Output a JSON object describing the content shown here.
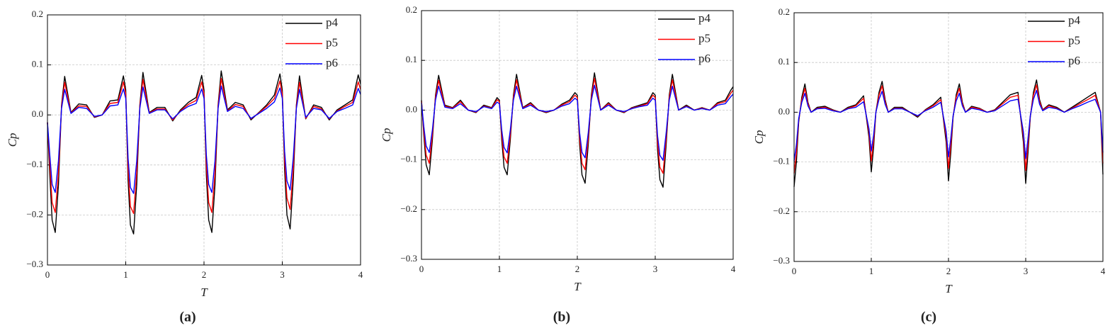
{
  "chart_data": [
    {
      "type": "line",
      "caption": "(a)",
      "x_label": "T",
      "y_label": "Cp",
      "grid": true,
      "legend": "upper right",
      "xlim": [
        0,
        4
      ],
      "ylim": [
        -0.3,
        0.2
      ],
      "xticks": [
        0,
        1,
        2,
        3,
        4
      ],
      "yticks": [
        {
          "value": -0.3,
          "label": "−0.3"
        },
        {
          "value": -0.2,
          "label": "−0.2"
        },
        {
          "value": -0.1,
          "label": "−0.1"
        },
        {
          "value": 0,
          "label": "0.0"
        },
        0.1,
        0.2
      ],
      "x": [
        0,
        0.03,
        0.06,
        0.1,
        0.14,
        0.18,
        0.22,
        0.3,
        0.4,
        0.5,
        0.6,
        0.7,
        0.8,
        0.9,
        0.97,
        1,
        1.03,
        1.06,
        1.1,
        1.14,
        1.18,
        1.22,
        1.3,
        1.4,
        1.5,
        1.6,
        1.7,
        1.8,
        1.9,
        1.97,
        2,
        2.03,
        2.06,
        2.1,
        2.14,
        2.18,
        2.22,
        2.3,
        2.4,
        2.5,
        2.6,
        2.7,
        2.8,
        2.9,
        2.97,
        3,
        3.03,
        3.06,
        3.1,
        3.14,
        3.18,
        3.22,
        3.3,
        3.4,
        3.5,
        3.6,
        3.7,
        3.8,
        3.9,
        3.97,
        4
      ],
      "series": [
        {
          "name": "p4",
          "color": "#000000",
          "values": [
            -0.015,
            -0.12,
            -0.21,
            -0.235,
            -0.14,
            0.02,
            0.077,
            0.005,
            0.022,
            0.02,
            -0.005,
            0.0,
            0.028,
            0.03,
            0.078,
            0.05,
            -0.13,
            -0.22,
            -0.238,
            -0.14,
            0.02,
            0.085,
            0.005,
            0.015,
            0.015,
            -0.012,
            0.01,
            0.025,
            0.035,
            0.079,
            0.05,
            -0.12,
            -0.21,
            -0.235,
            -0.14,
            0.02,
            0.088,
            0.01,
            0.025,
            0.02,
            -0.01,
            0.005,
            0.02,
            0.04,
            0.082,
            0.05,
            -0.11,
            -0.2,
            -0.228,
            -0.13,
            0.02,
            0.078,
            -0.008,
            0.02,
            0.015,
            -0.01,
            0.01,
            0.02,
            0.03,
            0.08,
            0.062
          ]
        },
        {
          "name": "p5",
          "color": "#ff0000",
          "values": [
            -0.015,
            -0.1,
            -0.175,
            -0.195,
            -0.116,
            0.017,
            0.065,
            0.004,
            0.018,
            0.017,
            -0.004,
            0.0,
            0.023,
            0.025,
            0.066,
            0.042,
            -0.108,
            -0.183,
            -0.197,
            -0.116,
            0.017,
            0.071,
            0.004,
            0.012,
            0.012,
            -0.01,
            0.008,
            0.021,
            0.029,
            0.066,
            0.042,
            -0.1,
            -0.175,
            -0.195,
            -0.116,
            0.017,
            0.073,
            0.008,
            0.021,
            0.017,
            -0.008,
            0.004,
            0.017,
            0.033,
            0.068,
            0.042,
            -0.091,
            -0.166,
            -0.189,
            -0.108,
            0.017,
            0.065,
            -0.007,
            0.017,
            0.012,
            -0.008,
            0.008,
            0.017,
            0.025,
            0.066,
            0.051
          ]
        },
        {
          "name": "p6",
          "color": "#0000ff",
          "values": [
            -0.015,
            -0.08,
            -0.139,
            -0.155,
            -0.092,
            0.013,
            0.051,
            0.003,
            0.015,
            0.013,
            -0.003,
            0.0,
            0.018,
            0.02,
            0.052,
            0.033,
            -0.086,
            -0.145,
            -0.157,
            -0.092,
            0.013,
            0.056,
            0.003,
            0.01,
            0.01,
            -0.008,
            0.007,
            0.017,
            0.023,
            0.052,
            0.033,
            -0.08,
            -0.139,
            -0.155,
            -0.092,
            0.013,
            0.058,
            0.007,
            0.017,
            0.013,
            -0.007,
            0.003,
            0.013,
            0.026,
            0.054,
            0.033,
            -0.073,
            -0.132,
            -0.15,
            -0.086,
            0.013,
            0.051,
            -0.005,
            0.013,
            0.01,
            -0.007,
            0.007,
            0.013,
            0.02,
            0.053,
            0.041
          ]
        }
      ]
    },
    {
      "type": "line",
      "caption": "(b)",
      "x_label": "T",
      "y_label": "Cp",
      "grid": true,
      "legend": "upper right",
      "xlim": [
        0,
        4
      ],
      "ylim": [
        -0.3,
        0.2
      ],
      "xticks": [
        0,
        1,
        2,
        3,
        4
      ],
      "yticks": [
        {
          "value": -0.3,
          "label": "−0.3"
        },
        {
          "value": -0.2,
          "label": "−0.2"
        },
        {
          "value": -0.1,
          "label": "−0.1"
        },
        {
          "value": 0,
          "label": "0.0"
        },
        0.1,
        0.2
      ],
      "x": [
        0,
        0.03,
        0.06,
        0.1,
        0.14,
        0.18,
        0.22,
        0.3,
        0.4,
        0.5,
        0.6,
        0.7,
        0.8,
        0.9,
        0.97,
        1,
        1.03,
        1.06,
        1.1,
        1.14,
        1.18,
        1.22,
        1.3,
        1.4,
        1.5,
        1.6,
        1.7,
        1.8,
        1.9,
        1.97,
        2,
        2.03,
        2.06,
        2.1,
        2.14,
        2.18,
        2.22,
        2.3,
        2.4,
        2.5,
        2.6,
        2.7,
        2.8,
        2.9,
        2.97,
        3,
        3.03,
        3.06,
        3.1,
        3.14,
        3.18,
        3.22,
        3.3,
        3.4,
        3.5,
        3.6,
        3.7,
        3.8,
        3.9,
        3.97,
        4
      ],
      "series": [
        {
          "name": "p4",
          "color": "#000000",
          "values": [
            0.02,
            -0.05,
            -0.11,
            -0.13,
            -0.06,
            0.03,
            0.07,
            0.01,
            0.005,
            0.02,
            0.0,
            -0.005,
            0.01,
            0.005,
            0.025,
            0.02,
            -0.06,
            -0.115,
            -0.13,
            -0.06,
            0.03,
            0.072,
            0.005,
            0.015,
            0.0,
            -0.005,
            0.0,
            0.012,
            0.02,
            0.035,
            0.03,
            -0.07,
            -0.13,
            -0.147,
            -0.07,
            0.03,
            0.075,
            0.0,
            0.015,
            0.0,
            -0.005,
            0.005,
            0.01,
            0.015,
            0.035,
            0.03,
            -0.08,
            -0.14,
            -0.155,
            -0.07,
            0.03,
            0.072,
            0.0,
            0.01,
            0.0,
            0.005,
            0.0,
            0.015,
            0.02,
            0.04,
            0.047
          ]
        },
        {
          "name": "p5",
          "color": "#ff0000",
          "values": [
            0.018,
            -0.042,
            -0.09,
            -0.107,
            -0.05,
            0.025,
            0.06,
            0.008,
            0.004,
            0.017,
            0.0,
            -0.004,
            0.008,
            0.004,
            0.021,
            0.017,
            -0.05,
            -0.094,
            -0.107,
            -0.05,
            0.025,
            0.061,
            0.004,
            0.013,
            0.0,
            -0.004,
            0.0,
            0.01,
            0.017,
            0.03,
            0.025,
            -0.058,
            -0.107,
            -0.12,
            -0.058,
            0.025,
            0.064,
            0.0,
            0.013,
            0.0,
            -0.004,
            0.004,
            0.008,
            0.013,
            0.03,
            0.025,
            -0.066,
            -0.115,
            -0.127,
            -0.058,
            0.025,
            0.061,
            0.0,
            0.008,
            0.0,
            0.004,
            0.0,
            0.013,
            0.017,
            0.034,
            0.04
          ]
        },
        {
          "name": "p6",
          "color": "#0000ff",
          "values": [
            0.015,
            -0.033,
            -0.072,
            -0.085,
            -0.04,
            0.02,
            0.048,
            0.006,
            0.003,
            0.013,
            0.0,
            -0.003,
            0.007,
            0.003,
            0.016,
            0.013,
            -0.04,
            -0.075,
            -0.086,
            -0.04,
            0.02,
            0.048,
            0.003,
            0.01,
            0.0,
            -0.003,
            0.0,
            0.008,
            0.013,
            0.024,
            0.02,
            -0.046,
            -0.085,
            -0.096,
            -0.046,
            0.02,
            0.05,
            0.0,
            0.01,
            0.0,
            -0.003,
            0.003,
            0.007,
            0.01,
            0.024,
            0.02,
            -0.052,
            -0.091,
            -0.101,
            -0.046,
            0.02,
            0.048,
            0.0,
            0.007,
            0.0,
            0.003,
            0.0,
            0.01,
            0.013,
            0.027,
            0.032
          ]
        }
      ]
    },
    {
      "type": "line",
      "caption": "(c)",
      "x_label": "T",
      "y_label": "Cp",
      "grid": true,
      "legend": "upper right",
      "xlim": [
        0,
        4
      ],
      "ylim": [
        -0.3,
        0.2
      ],
      "xticks": [
        0,
        1,
        2,
        3,
        4
      ],
      "yticks": [
        {
          "value": -0.3,
          "label": "−0.3"
        },
        {
          "value": -0.2,
          "label": "−0.2"
        },
        {
          "value": -0.1,
          "label": "−0.1"
        },
        {
          "value": 0,
          "label": "0.0"
        },
        0.1,
        0.2
      ],
      "x": [
        0,
        0.03,
        0.06,
        0.1,
        0.14,
        0.18,
        0.22,
        0.3,
        0.4,
        0.5,
        0.6,
        0.7,
        0.8,
        0.9,
        0.97,
        1,
        1.03,
        1.06,
        1.1,
        1.14,
        1.18,
        1.22,
        1.3,
        1.4,
        1.5,
        1.6,
        1.7,
        1.8,
        1.9,
        1.97,
        2,
        2.03,
        2.06,
        2.1,
        2.14,
        2.18,
        2.22,
        2.3,
        2.4,
        2.5,
        2.6,
        2.7,
        2.8,
        2.9,
        2.97,
        3,
        3.03,
        3.06,
        3.1,
        3.14,
        3.18,
        3.22,
        3.3,
        3.4,
        3.5,
        3.6,
        3.7,
        3.8,
        3.9,
        3.97,
        4
      ],
      "series": [
        {
          "name": "p4",
          "color": "#000000",
          "values": [
            -0.15,
            -0.1,
            -0.02,
            0.03,
            0.057,
            0.02,
            0.0,
            0.01,
            0.012,
            0.005,
            0.0,
            0.01,
            0.015,
            0.033,
            -0.05,
            -0.12,
            -0.07,
            0.0,
            0.04,
            0.062,
            0.025,
            0.0,
            0.01,
            0.01,
            0.0,
            -0.01,
            0.005,
            0.015,
            0.03,
            -0.06,
            -0.138,
            -0.08,
            -0.01,
            0.035,
            0.057,
            0.02,
            0.0,
            0.012,
            0.008,
            0.0,
            0.005,
            0.02,
            0.035,
            0.04,
            -0.06,
            -0.143,
            -0.08,
            -0.01,
            0.04,
            0.065,
            0.025,
            0.005,
            0.015,
            0.01,
            0.0,
            0.01,
            0.02,
            0.03,
            0.04,
            0.0,
            -0.125
          ]
        },
        {
          "name": "p5",
          "color": "#ff0000",
          "values": [
            -0.123,
            -0.082,
            -0.016,
            0.025,
            0.048,
            0.017,
            0.0,
            0.008,
            0.01,
            0.004,
            0.0,
            0.008,
            0.013,
            0.028,
            -0.041,
            -0.098,
            -0.057,
            0.0,
            0.034,
            0.053,
            0.021,
            0.0,
            0.008,
            0.008,
            0.0,
            -0.008,
            0.004,
            0.013,
            0.025,
            -0.049,
            -0.113,
            -0.066,
            -0.008,
            0.03,
            0.048,
            0.017,
            0.0,
            0.01,
            0.007,
            0.0,
            0.004,
            0.017,
            0.03,
            0.034,
            -0.049,
            -0.117,
            -0.066,
            -0.008,
            0.034,
            0.055,
            0.021,
            0.004,
            0.013,
            0.008,
            0.0,
            0.008,
            0.017,
            0.025,
            0.034,
            0.0,
            -0.103
          ]
        },
        {
          "name": "p6",
          "color": "#0000ff",
          "values": [
            -0.098,
            -0.065,
            -0.013,
            0.02,
            0.038,
            0.013,
            0.0,
            0.007,
            0.008,
            0.003,
            0.0,
            0.007,
            0.01,
            0.021,
            -0.033,
            -0.078,
            -0.046,
            0.0,
            0.026,
            0.042,
            0.016,
            0.0,
            0.007,
            0.007,
            0.0,
            -0.007,
            0.003,
            0.01,
            0.02,
            -0.039,
            -0.09,
            -0.052,
            -0.007,
            0.023,
            0.038,
            0.013,
            0.0,
            0.008,
            0.005,
            0.0,
            0.003,
            0.013,
            0.023,
            0.026,
            -0.039,
            -0.093,
            -0.052,
            -0.007,
            0.026,
            0.044,
            0.016,
            0.003,
            0.01,
            0.007,
            0.0,
            0.007,
            0.013,
            0.02,
            0.026,
            0.0,
            -0.081
          ]
        }
      ]
    }
  ]
}
